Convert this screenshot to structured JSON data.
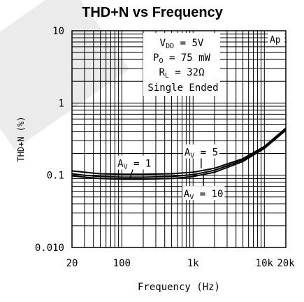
{
  "chart_data": {
    "type": "line",
    "title": "THD+N vs Frequency",
    "xlabel": "Frequency (Hz)",
    "ylabel": "THD+N (%)",
    "x_scale": "log",
    "y_scale": "log",
    "xlim": [
      20,
      20000
    ],
    "ylim": [
      0.01,
      10
    ],
    "grid": true,
    "x_ticks": [
      {
        "value": 20,
        "label": "20"
      },
      {
        "value": 100,
        "label": "100"
      },
      {
        "value": 1000,
        "label": "1k"
      },
      {
        "value": 10000,
        "label": "10k"
      },
      {
        "value": 20000,
        "label": "20k"
      }
    ],
    "y_ticks": [
      {
        "value": 10,
        "label": "10"
      },
      {
        "value": 1,
        "label": "1"
      },
      {
        "value": 0.1,
        "label": "0.1"
      },
      {
        "value": 0.01,
        "label": "0.010"
      }
    ],
    "conditions": {
      "vdd_label": "V",
      "vdd_sub": "DD",
      "vdd_value": " = 5V",
      "po_label": "P",
      "po_sub": "O",
      "po_value": " = 75 mW",
      "rl_label": "R",
      "rl_sub": "L",
      "rl_value": " = 32Ω",
      "mode": "Single Ended"
    },
    "corner_label": "Ap",
    "series": [
      {
        "name_main": "A",
        "name_sub": "V",
        "name_value": " = 5",
        "x": [
          20,
          30,
          50,
          100,
          200,
          500,
          1000,
          2000,
          5000,
          10000,
          20000
        ],
        "y": [
          0.115,
          0.11,
          0.105,
          0.103,
          0.103,
          0.105,
          0.11,
          0.125,
          0.17,
          0.25,
          0.45
        ]
      },
      {
        "name_main": "A",
        "name_sub": "V",
        "name_value": " = 1",
        "x": [
          20,
          30,
          50,
          100,
          200,
          500,
          1000,
          2000,
          5000,
          10000,
          20000
        ],
        "y": [
          0.098,
          0.094,
          0.09,
          0.088,
          0.088,
          0.09,
          0.096,
          0.11,
          0.155,
          0.235,
          0.42
        ]
      },
      {
        "name_main": "A",
        "name_sub": "V",
        "name_value": " = 10",
        "x": [
          20,
          30,
          50,
          100,
          200,
          500,
          1000,
          2000,
          5000,
          10000,
          20000
        ],
        "y": [
          0.105,
          0.1,
          0.096,
          0.094,
          0.094,
          0.096,
          0.102,
          0.117,
          0.162,
          0.242,
          0.43
        ]
      }
    ],
    "annotations": [
      {
        "series": 0,
        "x": 1300,
        "y": 0.2
      },
      {
        "series": 1,
        "x": 150,
        "y": 0.14
      },
      {
        "series": 2,
        "x": 1400,
        "y": 0.053
      }
    ]
  }
}
